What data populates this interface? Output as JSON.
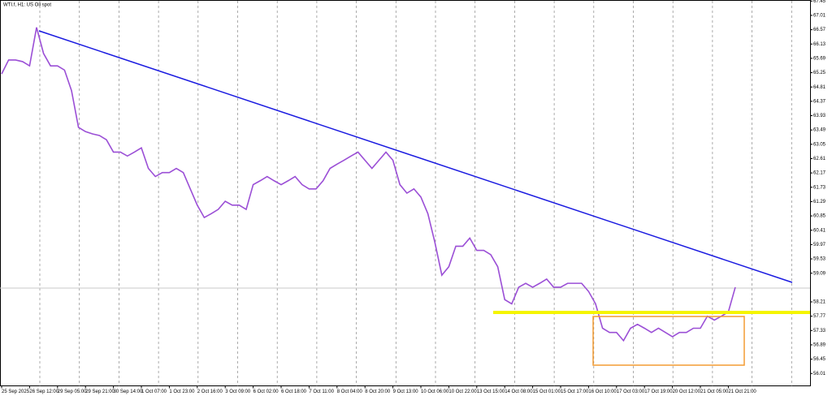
{
  "chart_data": {
    "type": "line",
    "title": "WTI.f, H1:  US Oil spot",
    "categories": [
      "25 Sep 2025",
      null,
      null,
      null,
      "26 Sep 12:00",
      null,
      null,
      null,
      "29 Sep 05:00",
      null,
      null,
      null,
      "29 Sep 21:00",
      null,
      null,
      null,
      "30 Sep 14:00",
      null,
      null,
      null,
      "1 Oct 07:00",
      null,
      null,
      null,
      "1 Oct 23:00",
      null,
      null,
      null,
      "2 Oct 16:00",
      null,
      null,
      null,
      "3 Oct 09:00",
      null,
      null,
      null,
      "6 Oct 02:00",
      null,
      null,
      null,
      "6 Oct 18:00",
      null,
      null,
      null,
      "7 Oct 11:00",
      null,
      null,
      null,
      "8 Oct 04:00",
      null,
      null,
      null,
      "8 Oct 20:00",
      null,
      null,
      null,
      "9 Oct 13:00",
      null,
      null,
      null,
      "10 Oct 06:00",
      null,
      null,
      null,
      "10 Oct 22:00",
      null,
      null,
      null,
      "13 Oct 15:00",
      null,
      null,
      null,
      "14 Oct 08:00",
      null,
      null,
      null,
      "15 Oct 01:00",
      null,
      null,
      null,
      "15 Oct 17:00",
      null,
      null,
      null,
      "16 Oct 10:00",
      null,
      null,
      null,
      "17 Oct 03:00",
      null,
      null,
      null,
      "17 Oct 19:00",
      null,
      null,
      null,
      "20 Oct 12:00",
      null,
      null,
      null,
      "21 Oct 05:00",
      null,
      null,
      null,
      "21 Oct 21:00",
      null
    ],
    "values": [
      65.21,
      65.64,
      65.64,
      65.59,
      65.46,
      66.64,
      65.84,
      65.46,
      65.46,
      65.33,
      64.7,
      63.57,
      63.44,
      63.37,
      63.32,
      63.19,
      62.81,
      62.81,
      62.69,
      62.81,
      62.94,
      62.31,
      62.06,
      62.18,
      62.18,
      62.31,
      62.18,
      61.68,
      61.18,
      60.8,
      60.92,
      61.05,
      61.3,
      61.18,
      61.18,
      61.05,
      61.81,
      61.93,
      62.06,
      61.93,
      61.81,
      61.93,
      62.06,
      61.81,
      61.68,
      61.68,
      61.93,
      62.31,
      62.44,
      62.56,
      62.69,
      62.81,
      62.56,
      62.31,
      62.56,
      62.81,
      62.56,
      61.81,
      61.55,
      61.68,
      61.43,
      60.92,
      60.04,
      59.03,
      59.29,
      59.92,
      59.92,
      60.17,
      59.79,
      59.79,
      59.66,
      59.29,
      58.28,
      58.15,
      58.66,
      58.78,
      58.66,
      58.78,
      58.91,
      58.66,
      58.66,
      58.78,
      58.78,
      58.78,
      58.53,
      58.15,
      57.4,
      57.27,
      57.27,
      57.02,
      57.4,
      57.52,
      57.4,
      57.27,
      57.4,
      57.27,
      57.14,
      57.27,
      57.27,
      57.4,
      57.4,
      57.77,
      57.65,
      57.77,
      57.9,
      58.66
    ],
    "color": "#9b4fd6",
    "ylim": [
      55.63,
      67.47
    ],
    "yticks": [
      67.45,
      67.01,
      66.57,
      66.13,
      65.69,
      65.25,
      64.81,
      64.37,
      63.93,
      63.49,
      63.05,
      62.61,
      62.17,
      61.73,
      61.29,
      60.85,
      60.41,
      59.97,
      59.53,
      59.09,
      58.21,
      57.77,
      57.33,
      56.89,
      56.45,
      56.01
    ]
  }
}
